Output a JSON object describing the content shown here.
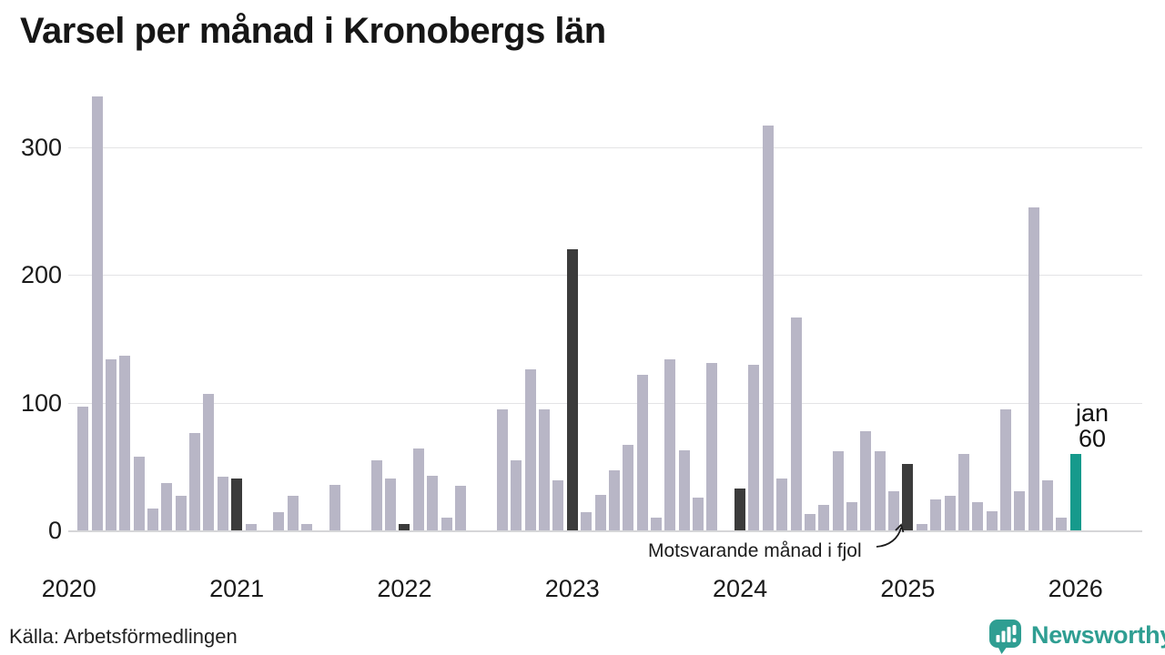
{
  "title": "Varsel per månad i Kronobergs län",
  "source": "Källa: Arbetsförmedlingen",
  "branding": {
    "logo_text": "Newsworthy",
    "logo_color": "#2f9e92"
  },
  "annotation": {
    "label": "Motsvarande månad i fjol"
  },
  "current_label": {
    "line1": "jan",
    "line2": "60"
  },
  "colors": {
    "bar": "#b8b6c6",
    "highlight": "#3b3b3b",
    "current": "#169a8c",
    "grid": "#e4e4e6",
    "axis": "#d6d6d8",
    "text": "#1a1a1a"
  },
  "chart_data": {
    "type": "bar",
    "title": "Varsel per månad i Kronobergs län",
    "xlabel": "",
    "ylabel": "",
    "ylim": [
      0,
      350
    ],
    "yticks": [
      0,
      100,
      200,
      300
    ],
    "x_tick_years": [
      "2020",
      "2021",
      "2022",
      "2023",
      "2024",
      "2025",
      "2026"
    ],
    "legend": {
      "highlight_meaning": "Motsvarande månad i fjol",
      "current_meaning": "jan 60"
    },
    "months": [
      {
        "month": "2020-01",
        "value": 0,
        "kind": "normal"
      },
      {
        "month": "2020-02",
        "value": 97,
        "kind": "normal"
      },
      {
        "month": "2020-03",
        "value": 340,
        "kind": "normal"
      },
      {
        "month": "2020-04",
        "value": 134,
        "kind": "normal"
      },
      {
        "month": "2020-05",
        "value": 137,
        "kind": "normal"
      },
      {
        "month": "2020-06",
        "value": 58,
        "kind": "normal"
      },
      {
        "month": "2020-07",
        "value": 17,
        "kind": "normal"
      },
      {
        "month": "2020-08",
        "value": 37,
        "kind": "normal"
      },
      {
        "month": "2020-09",
        "value": 27,
        "kind": "normal"
      },
      {
        "month": "2020-10",
        "value": 76,
        "kind": "normal"
      },
      {
        "month": "2020-11",
        "value": 107,
        "kind": "normal"
      },
      {
        "month": "2020-12",
        "value": 42,
        "kind": "normal"
      },
      {
        "month": "2021-01",
        "value": 41,
        "kind": "lastyear"
      },
      {
        "month": "2021-02",
        "value": 5,
        "kind": "normal"
      },
      {
        "month": "2021-03",
        "value": 0,
        "kind": "normal"
      },
      {
        "month": "2021-04",
        "value": 14,
        "kind": "normal"
      },
      {
        "month": "2021-05",
        "value": 27,
        "kind": "normal"
      },
      {
        "month": "2021-06",
        "value": 5,
        "kind": "normal"
      },
      {
        "month": "2021-07",
        "value": 0,
        "kind": "normal"
      },
      {
        "month": "2021-08",
        "value": 36,
        "kind": "normal"
      },
      {
        "month": "2021-09",
        "value": 0,
        "kind": "normal"
      },
      {
        "month": "2021-10",
        "value": 0,
        "kind": "normal"
      },
      {
        "month": "2021-11",
        "value": 55,
        "kind": "normal"
      },
      {
        "month": "2021-12",
        "value": 41,
        "kind": "normal"
      },
      {
        "month": "2022-01",
        "value": 5,
        "kind": "lastyear"
      },
      {
        "month": "2022-02",
        "value": 64,
        "kind": "normal"
      },
      {
        "month": "2022-03",
        "value": 43,
        "kind": "normal"
      },
      {
        "month": "2022-04",
        "value": 10,
        "kind": "normal"
      },
      {
        "month": "2022-05",
        "value": 35,
        "kind": "normal"
      },
      {
        "month": "2022-06",
        "value": 0,
        "kind": "normal"
      },
      {
        "month": "2022-07",
        "value": 0,
        "kind": "normal"
      },
      {
        "month": "2022-08",
        "value": 95,
        "kind": "normal"
      },
      {
        "month": "2022-09",
        "value": 55,
        "kind": "normal"
      },
      {
        "month": "2022-10",
        "value": 126,
        "kind": "normal"
      },
      {
        "month": "2022-11",
        "value": 95,
        "kind": "normal"
      },
      {
        "month": "2022-12",
        "value": 39,
        "kind": "normal"
      },
      {
        "month": "2023-01",
        "value": 220,
        "kind": "lastyear"
      },
      {
        "month": "2023-02",
        "value": 14,
        "kind": "normal"
      },
      {
        "month": "2023-03",
        "value": 28,
        "kind": "normal"
      },
      {
        "month": "2023-04",
        "value": 47,
        "kind": "normal"
      },
      {
        "month": "2023-05",
        "value": 67,
        "kind": "normal"
      },
      {
        "month": "2023-06",
        "value": 122,
        "kind": "normal"
      },
      {
        "month": "2023-07",
        "value": 10,
        "kind": "normal"
      },
      {
        "month": "2023-08",
        "value": 134,
        "kind": "normal"
      },
      {
        "month": "2023-09",
        "value": 63,
        "kind": "normal"
      },
      {
        "month": "2023-10",
        "value": 26,
        "kind": "normal"
      },
      {
        "month": "2023-11",
        "value": 131,
        "kind": "normal"
      },
      {
        "month": "2023-12",
        "value": 0,
        "kind": "normal"
      },
      {
        "month": "2024-01",
        "value": 33,
        "kind": "lastyear"
      },
      {
        "month": "2024-02",
        "value": 130,
        "kind": "normal"
      },
      {
        "month": "2024-03",
        "value": 317,
        "kind": "normal"
      },
      {
        "month": "2024-04",
        "value": 41,
        "kind": "normal"
      },
      {
        "month": "2024-05",
        "value": 167,
        "kind": "normal"
      },
      {
        "month": "2024-06",
        "value": 13,
        "kind": "normal"
      },
      {
        "month": "2024-07",
        "value": 20,
        "kind": "normal"
      },
      {
        "month": "2024-08",
        "value": 62,
        "kind": "normal"
      },
      {
        "month": "2024-09",
        "value": 22,
        "kind": "normal"
      },
      {
        "month": "2024-10",
        "value": 78,
        "kind": "normal"
      },
      {
        "month": "2024-11",
        "value": 62,
        "kind": "normal"
      },
      {
        "month": "2024-12",
        "value": 31,
        "kind": "normal"
      },
      {
        "month": "2025-01",
        "value": 52,
        "kind": "lastyear"
      },
      {
        "month": "2025-02",
        "value": 5,
        "kind": "normal"
      },
      {
        "month": "2025-03",
        "value": 24,
        "kind": "normal"
      },
      {
        "month": "2025-04",
        "value": 27,
        "kind": "normal"
      },
      {
        "month": "2025-05",
        "value": 60,
        "kind": "normal"
      },
      {
        "month": "2025-06",
        "value": 22,
        "kind": "normal"
      },
      {
        "month": "2025-07",
        "value": 15,
        "kind": "normal"
      },
      {
        "month": "2025-08",
        "value": 95,
        "kind": "normal"
      },
      {
        "month": "2025-09",
        "value": 31,
        "kind": "normal"
      },
      {
        "month": "2025-10",
        "value": 253,
        "kind": "normal"
      },
      {
        "month": "2025-11",
        "value": 39,
        "kind": "normal"
      },
      {
        "month": "2025-12",
        "value": 10,
        "kind": "normal"
      },
      {
        "month": "2026-01",
        "value": 60,
        "kind": "current"
      }
    ]
  }
}
